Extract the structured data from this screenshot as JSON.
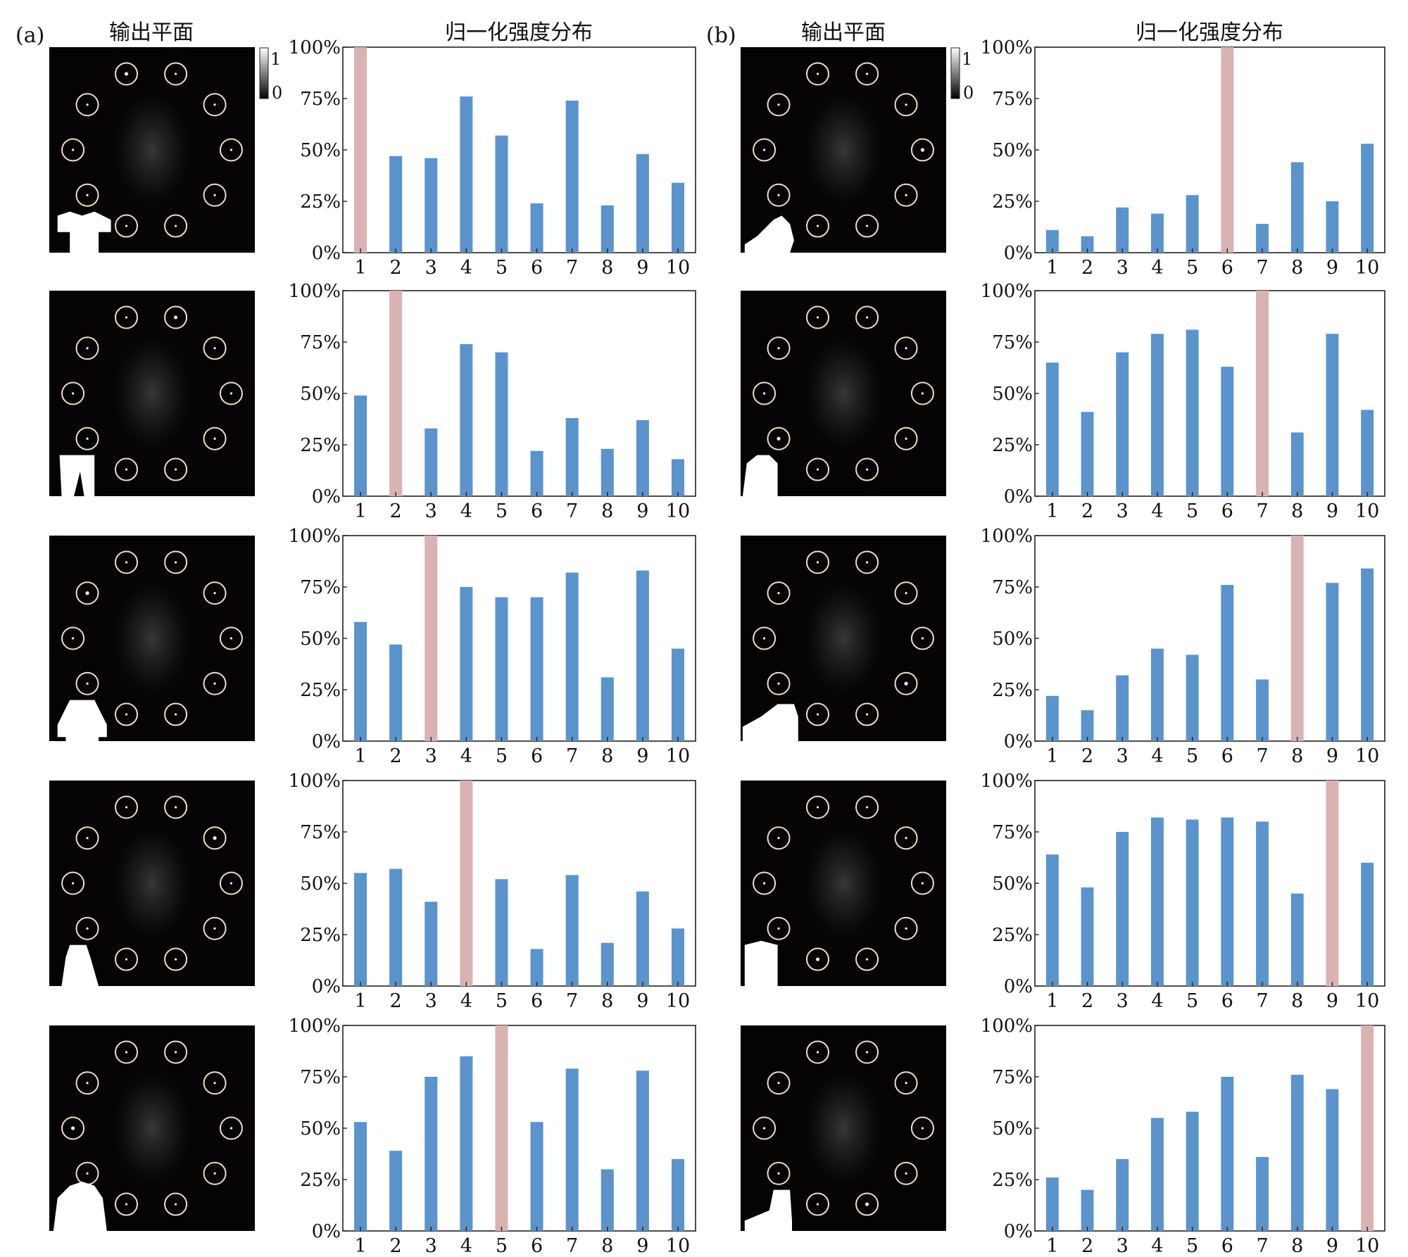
{
  "figure": {
    "panel_labels": [
      "(a)",
      "(b)"
    ],
    "column_titles": {
      "output_plane": "输出平面",
      "intensity": "归一化强度分布"
    },
    "colorbar": {
      "max_label": "1",
      "min_label": "0"
    },
    "colors": {
      "bar": "#5b93cc",
      "highlight": "#d9b3b3",
      "background": "#ffffff",
      "plane": "#050303",
      "ring": "#eedfc6"
    },
    "object_icons": {
      "a": [
        "t-shirt-icon",
        "trouser-icon",
        "pullover-icon",
        "dress-icon",
        "coat-icon"
      ],
      "b": [
        "sandal-icon",
        "shirt-icon",
        "sneaker-icon",
        "bag-icon",
        "ankle-boot-icon"
      ]
    }
  },
  "chart_data": [
    {
      "type": "bar",
      "panel": "a",
      "row": 1,
      "categories": [
        "1",
        "2",
        "3",
        "4",
        "5",
        "6",
        "7",
        "8",
        "9",
        "10"
      ],
      "values": [
        100,
        47,
        46,
        76,
        57,
        24,
        74,
        23,
        48,
        34
      ],
      "highlight_index": 0,
      "ylim": [
        0,
        100
      ],
      "yticks": [
        "0%",
        "25%",
        "50%",
        "75%",
        "100%"
      ],
      "xlabel": "",
      "ylabel": ""
    },
    {
      "type": "bar",
      "panel": "a",
      "row": 2,
      "categories": [
        "1",
        "2",
        "3",
        "4",
        "5",
        "6",
        "7",
        "8",
        "9",
        "10"
      ],
      "values": [
        49,
        100,
        33,
        74,
        70,
        22,
        38,
        23,
        37,
        18
      ],
      "highlight_index": 1,
      "ylim": [
        0,
        100
      ],
      "yticks": [
        "0%",
        "25%",
        "50%",
        "75%",
        "100%"
      ],
      "xlabel": "",
      "ylabel": ""
    },
    {
      "type": "bar",
      "panel": "a",
      "row": 3,
      "categories": [
        "1",
        "2",
        "3",
        "4",
        "5",
        "6",
        "7",
        "8",
        "9",
        "10"
      ],
      "values": [
        58,
        47,
        100,
        75,
        70,
        70,
        82,
        31,
        83,
        45
      ],
      "highlight_index": 2,
      "ylim": [
        0,
        100
      ],
      "yticks": [
        "0%",
        "25%",
        "50%",
        "75%",
        "100%"
      ],
      "xlabel": "",
      "ylabel": ""
    },
    {
      "type": "bar",
      "panel": "a",
      "row": 4,
      "categories": [
        "1",
        "2",
        "3",
        "4",
        "5",
        "6",
        "7",
        "8",
        "9",
        "10"
      ],
      "values": [
        55,
        57,
        41,
        100,
        52,
        18,
        54,
        21,
        46,
        28
      ],
      "highlight_index": 3,
      "ylim": [
        0,
        100
      ],
      "yticks": [
        "0%",
        "25%",
        "50%",
        "75%",
        "100%"
      ],
      "xlabel": "",
      "ylabel": ""
    },
    {
      "type": "bar",
      "panel": "a",
      "row": 5,
      "categories": [
        "1",
        "2",
        "3",
        "4",
        "5",
        "6",
        "7",
        "8",
        "9",
        "10"
      ],
      "values": [
        53,
        39,
        75,
        85,
        100,
        53,
        79,
        30,
        78,
        35
      ],
      "highlight_index": 4,
      "ylim": [
        0,
        100
      ],
      "yticks": [
        "0%",
        "25%",
        "50%",
        "75%",
        "100%"
      ],
      "xlabel": "",
      "ylabel": ""
    },
    {
      "type": "bar",
      "panel": "b",
      "row": 1,
      "categories": [
        "1",
        "2",
        "3",
        "4",
        "5",
        "6",
        "7",
        "8",
        "9",
        "10"
      ],
      "values": [
        11,
        8,
        22,
        19,
        28,
        100,
        14,
        44,
        25,
        53
      ],
      "highlight_index": 5,
      "ylim": [
        0,
        100
      ],
      "yticks": [
        "0%",
        "25%",
        "50%",
        "75%",
        "100%"
      ],
      "xlabel": "",
      "ylabel": ""
    },
    {
      "type": "bar",
      "panel": "b",
      "row": 2,
      "categories": [
        "1",
        "2",
        "3",
        "4",
        "5",
        "6",
        "7",
        "8",
        "9",
        "10"
      ],
      "values": [
        65,
        41,
        70,
        79,
        81,
        63,
        100,
        31,
        79,
        42
      ],
      "highlight_index": 6,
      "ylim": [
        0,
        100
      ],
      "yticks": [
        "0%",
        "25%",
        "50%",
        "75%",
        "100%"
      ],
      "xlabel": "",
      "ylabel": ""
    },
    {
      "type": "bar",
      "panel": "b",
      "row": 3,
      "categories": [
        "1",
        "2",
        "3",
        "4",
        "5",
        "6",
        "7",
        "8",
        "9",
        "10"
      ],
      "values": [
        22,
        15,
        32,
        45,
        42,
        76,
        30,
        100,
        77,
        84
      ],
      "highlight_index": 7,
      "ylim": [
        0,
        100
      ],
      "yticks": [
        "0%",
        "25%",
        "50%",
        "75%",
        "100%"
      ],
      "xlabel": "",
      "ylabel": ""
    },
    {
      "type": "bar",
      "panel": "b",
      "row": 4,
      "categories": [
        "1",
        "2",
        "3",
        "4",
        "5",
        "6",
        "7",
        "8",
        "9",
        "10"
      ],
      "values": [
        64,
        48,
        75,
        82,
        81,
        82,
        80,
        45,
        100,
        60
      ],
      "highlight_index": 8,
      "ylim": [
        0,
        100
      ],
      "yticks": [
        "0%",
        "25%",
        "50%",
        "75%",
        "100%"
      ],
      "xlabel": "",
      "ylabel": ""
    },
    {
      "type": "bar",
      "panel": "b",
      "row": 5,
      "categories": [
        "1",
        "2",
        "3",
        "4",
        "5",
        "6",
        "7",
        "8",
        "9",
        "10"
      ],
      "values": [
        26,
        20,
        35,
        55,
        58,
        75,
        36,
        76,
        69,
        100
      ],
      "highlight_index": 9,
      "ylim": [
        0,
        100
      ],
      "yticks": [
        "0%",
        "25%",
        "50%",
        "75%",
        "100%"
      ],
      "xlabel": "",
      "ylabel": ""
    }
  ]
}
